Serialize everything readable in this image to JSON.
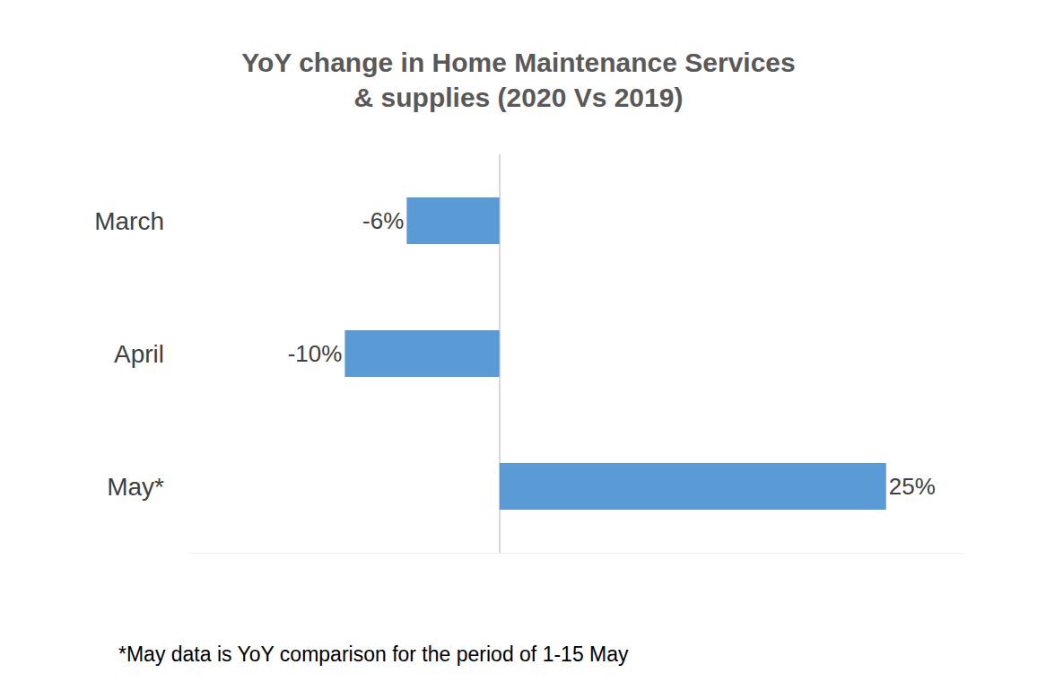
{
  "chart_data": {
    "type": "bar",
    "orientation": "horizontal",
    "title": "YoY change in Home Maintenance Services & supplies (2020 Vs 2019)",
    "categories": [
      "March",
      "April",
      "May*"
    ],
    "values": [
      -6,
      -10,
      25
    ],
    "value_labels": [
      "-6%",
      "-10%",
      "25%"
    ],
    "data_labels": true,
    "color": "#5b9bd5",
    "xlim": [
      -20,
      30
    ],
    "xticks": [
      0
    ],
    "grid": true,
    "tick_labels": "y",
    "annotations": [
      "*May data is YoY comparison for the period of 1-15 May"
    ]
  }
}
